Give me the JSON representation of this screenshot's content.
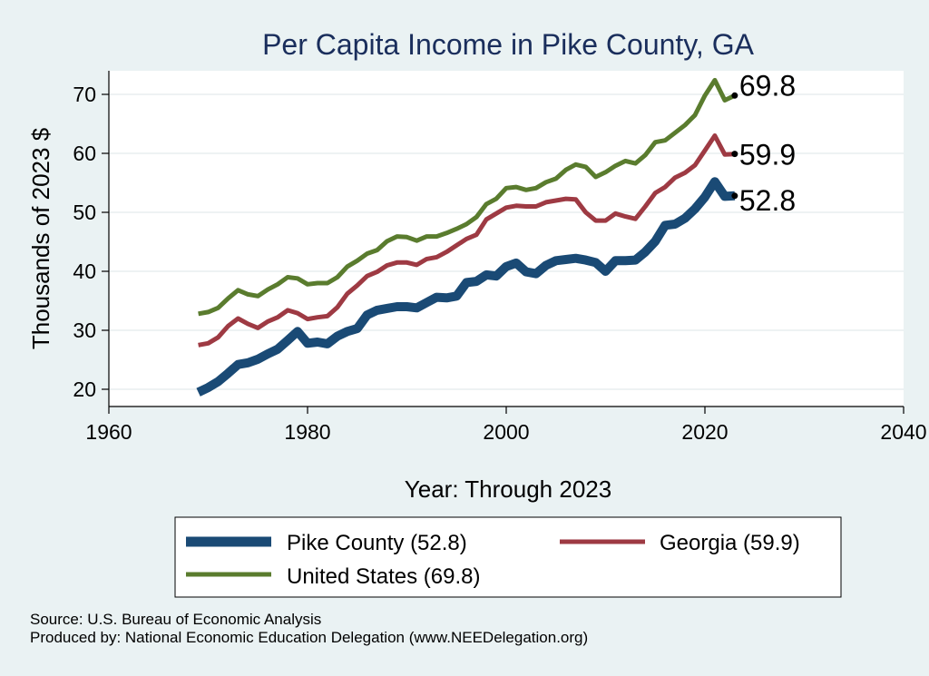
{
  "chart_data": {
    "type": "line",
    "title": "Per Capita Income in Pike County, GA",
    "xlabel": "Year: Through 2023",
    "ylabel": "Thousands of 2023 $",
    "xlim": [
      1960,
      2040
    ],
    "ylim": [
      20,
      70
    ],
    "x_ticks": [
      1960,
      1980,
      2000,
      2020,
      2040
    ],
    "y_ticks": [
      20,
      30,
      40,
      50,
      60,
      70
    ],
    "grid": "horizontal",
    "legend_position": "bottom",
    "x": [
      1969,
      1970,
      1971,
      1972,
      1973,
      1974,
      1975,
      1976,
      1977,
      1978,
      1979,
      1980,
      1981,
      1982,
      1983,
      1984,
      1985,
      1986,
      1987,
      1988,
      1989,
      1990,
      1991,
      1992,
      1993,
      1994,
      1995,
      1996,
      1997,
      1998,
      1999,
      2000,
      2001,
      2002,
      2003,
      2004,
      2005,
      2006,
      2007,
      2008,
      2009,
      2010,
      2011,
      2012,
      2013,
      2014,
      2015,
      2016,
      2017,
      2018,
      2019,
      2020,
      2021,
      2022,
      2023
    ],
    "series": [
      {
        "name": "Pike County",
        "legend_label": "Pike County (52.8)",
        "end_label": "52.8",
        "color": "#1a4a75",
        "width": 10,
        "values": [
          19.5,
          20.3,
          21.3,
          22.7,
          24.2,
          24.5,
          25.1,
          26.0,
          26.8,
          28.3,
          29.8,
          27.8,
          28.0,
          27.7,
          29.0,
          29.8,
          30.3,
          32.6,
          33.4,
          33.7,
          34.0,
          34.0,
          33.8,
          34.7,
          35.6,
          35.5,
          35.8,
          38.1,
          38.3,
          39.4,
          39.2,
          40.8,
          41.4,
          39.9,
          39.6,
          41.0,
          41.8,
          42.0,
          42.2,
          41.9,
          41.5,
          40.0,
          41.8,
          41.8,
          41.9,
          43.3,
          45.1,
          47.8,
          48.0,
          49.0,
          50.6,
          52.6,
          55.2,
          52.7,
          52.8
        ]
      },
      {
        "name": "Georgia",
        "legend_label": "Georgia (59.9)",
        "end_label": "59.9",
        "color": "#9e3a43",
        "width": 5,
        "values": [
          27.5,
          27.8,
          28.8,
          30.7,
          32.0,
          31.1,
          30.4,
          31.5,
          32.2,
          33.4,
          32.9,
          31.9,
          32.2,
          32.4,
          33.9,
          36.2,
          37.6,
          39.2,
          39.9,
          41.0,
          41.5,
          41.5,
          41.1,
          42.1,
          42.4,
          43.3,
          44.4,
          45.5,
          46.2,
          48.8,
          49.8,
          50.8,
          51.1,
          51.0,
          51.0,
          51.7,
          52.0,
          52.3,
          52.2,
          50.0,
          48.6,
          48.6,
          49.8,
          49.3,
          48.9,
          51.0,
          53.3,
          54.3,
          55.9,
          56.7,
          58.0,
          60.5,
          63.0,
          59.8,
          59.9
        ]
      },
      {
        "name": "United States",
        "legend_label": "United States (69.8)",
        "end_label": "69.8",
        "color": "#5a7c2e",
        "width": 5,
        "values": [
          32.8,
          33.1,
          33.8,
          35.4,
          36.8,
          36.1,
          35.8,
          36.9,
          37.8,
          39.0,
          38.8,
          37.8,
          38.0,
          38.0,
          39.0,
          40.8,
          41.8,
          43.0,
          43.6,
          45.1,
          45.9,
          45.8,
          45.2,
          45.9,
          45.9,
          46.5,
          47.2,
          48.0,
          49.2,
          51.4,
          52.3,
          54.1,
          54.3,
          53.8,
          54.1,
          55.1,
          55.7,
          57.2,
          58.1,
          57.7,
          56.0,
          56.8,
          57.9,
          58.7,
          58.3,
          59.7,
          61.9,
          62.2,
          63.5,
          64.8,
          66.5,
          69.8,
          72.4,
          69.0,
          69.8
        ]
      }
    ]
  },
  "footer": {
    "source": "Source: U.S. Bureau of Economic Analysis",
    "producer": "Produced by: National Economic Education Delegation (www.NEEDelegation.org)"
  }
}
